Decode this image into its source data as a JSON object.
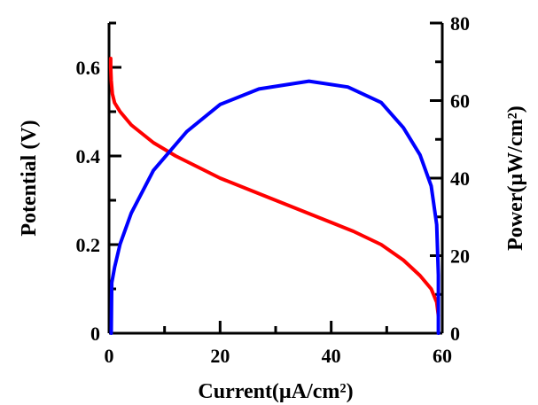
{
  "chart_data": {
    "type": "line",
    "xlabel": "Current(µA/cm²)",
    "ylabel_left": "Potential (V)",
    "ylabel_right": "Power(µW/cm²)",
    "xlim": [
      0,
      60
    ],
    "ylim_left": [
      0,
      0.7
    ],
    "ylim_right": [
      0,
      80
    ],
    "x_ticks": [
      0,
      20,
      40,
      60
    ],
    "y_left_ticks": [
      0,
      0.2,
      0.4,
      0.6
    ],
    "y_right_ticks": [
      0,
      20,
      40,
      60,
      80
    ],
    "grid": false,
    "series": [
      {
        "color": "#ff0000",
        "axis": "left",
        "x": [
          0.3,
          0.3,
          0.4,
          0.6,
          1.0,
          2.0,
          4.0,
          8.0,
          12.0,
          16.0,
          20.0,
          26.0,
          32.0,
          38.0,
          44.0,
          49.0,
          53.0,
          56.0,
          58.0,
          59.0,
          59.3
        ],
        "y": [
          0.62,
          0.6,
          0.57,
          0.54,
          0.52,
          0.5,
          0.47,
          0.43,
          0.4,
          0.375,
          0.35,
          0.32,
          0.29,
          0.26,
          0.23,
          0.2,
          0.165,
          0.13,
          0.1,
          0.07,
          0.04
        ]
      },
      {
        "color": "#0000ff",
        "axis": "right",
        "x": [
          0.4,
          0.5,
          1.0,
          2.0,
          4.0,
          8.0,
          14.0,
          20.0,
          27.0,
          36.0,
          43.0,
          49.0,
          53.0,
          56.0,
          58.0,
          59.0,
          59.3,
          59.3
        ],
        "y": [
          0,
          13,
          17,
          23,
          31,
          42,
          52,
          59,
          63,
          65,
          63.5,
          59.5,
          53,
          46,
          38,
          28,
          15,
          0
        ]
      }
    ]
  }
}
